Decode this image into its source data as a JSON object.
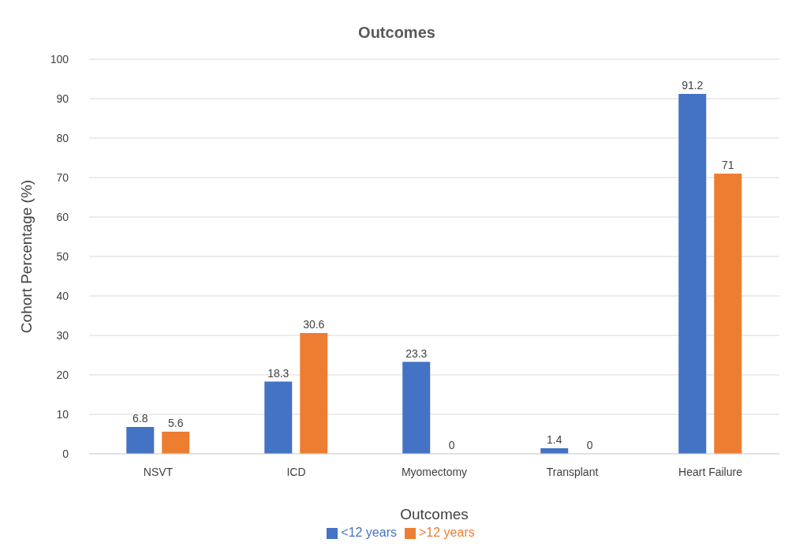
{
  "chart_data": {
    "type": "bar",
    "title": "Outcomes",
    "xlabel": "Outcomes",
    "ylabel": "Cohort Percentage (%)",
    "categories": [
      "NSVT",
      "ICD",
      "Myomectomy",
      "Transplant",
      "Heart Failure"
    ],
    "series": [
      {
        "name": "<12 years",
        "color": "#4472c4",
        "values": [
          6.8,
          18.3,
          23.3,
          1.4,
          91.2
        ]
      },
      {
        "name": ">12 years",
        "color": "#ed7d31",
        "values": [
          5.6,
          30.6,
          0,
          0,
          71
        ]
      }
    ],
    "ylim": [
      0,
      100
    ],
    "yticks": [
      0,
      10,
      20,
      30,
      40,
      50,
      60,
      70,
      80,
      90,
      100
    ],
    "grid": "y",
    "legend": "bottom",
    "data_labels": true
  }
}
